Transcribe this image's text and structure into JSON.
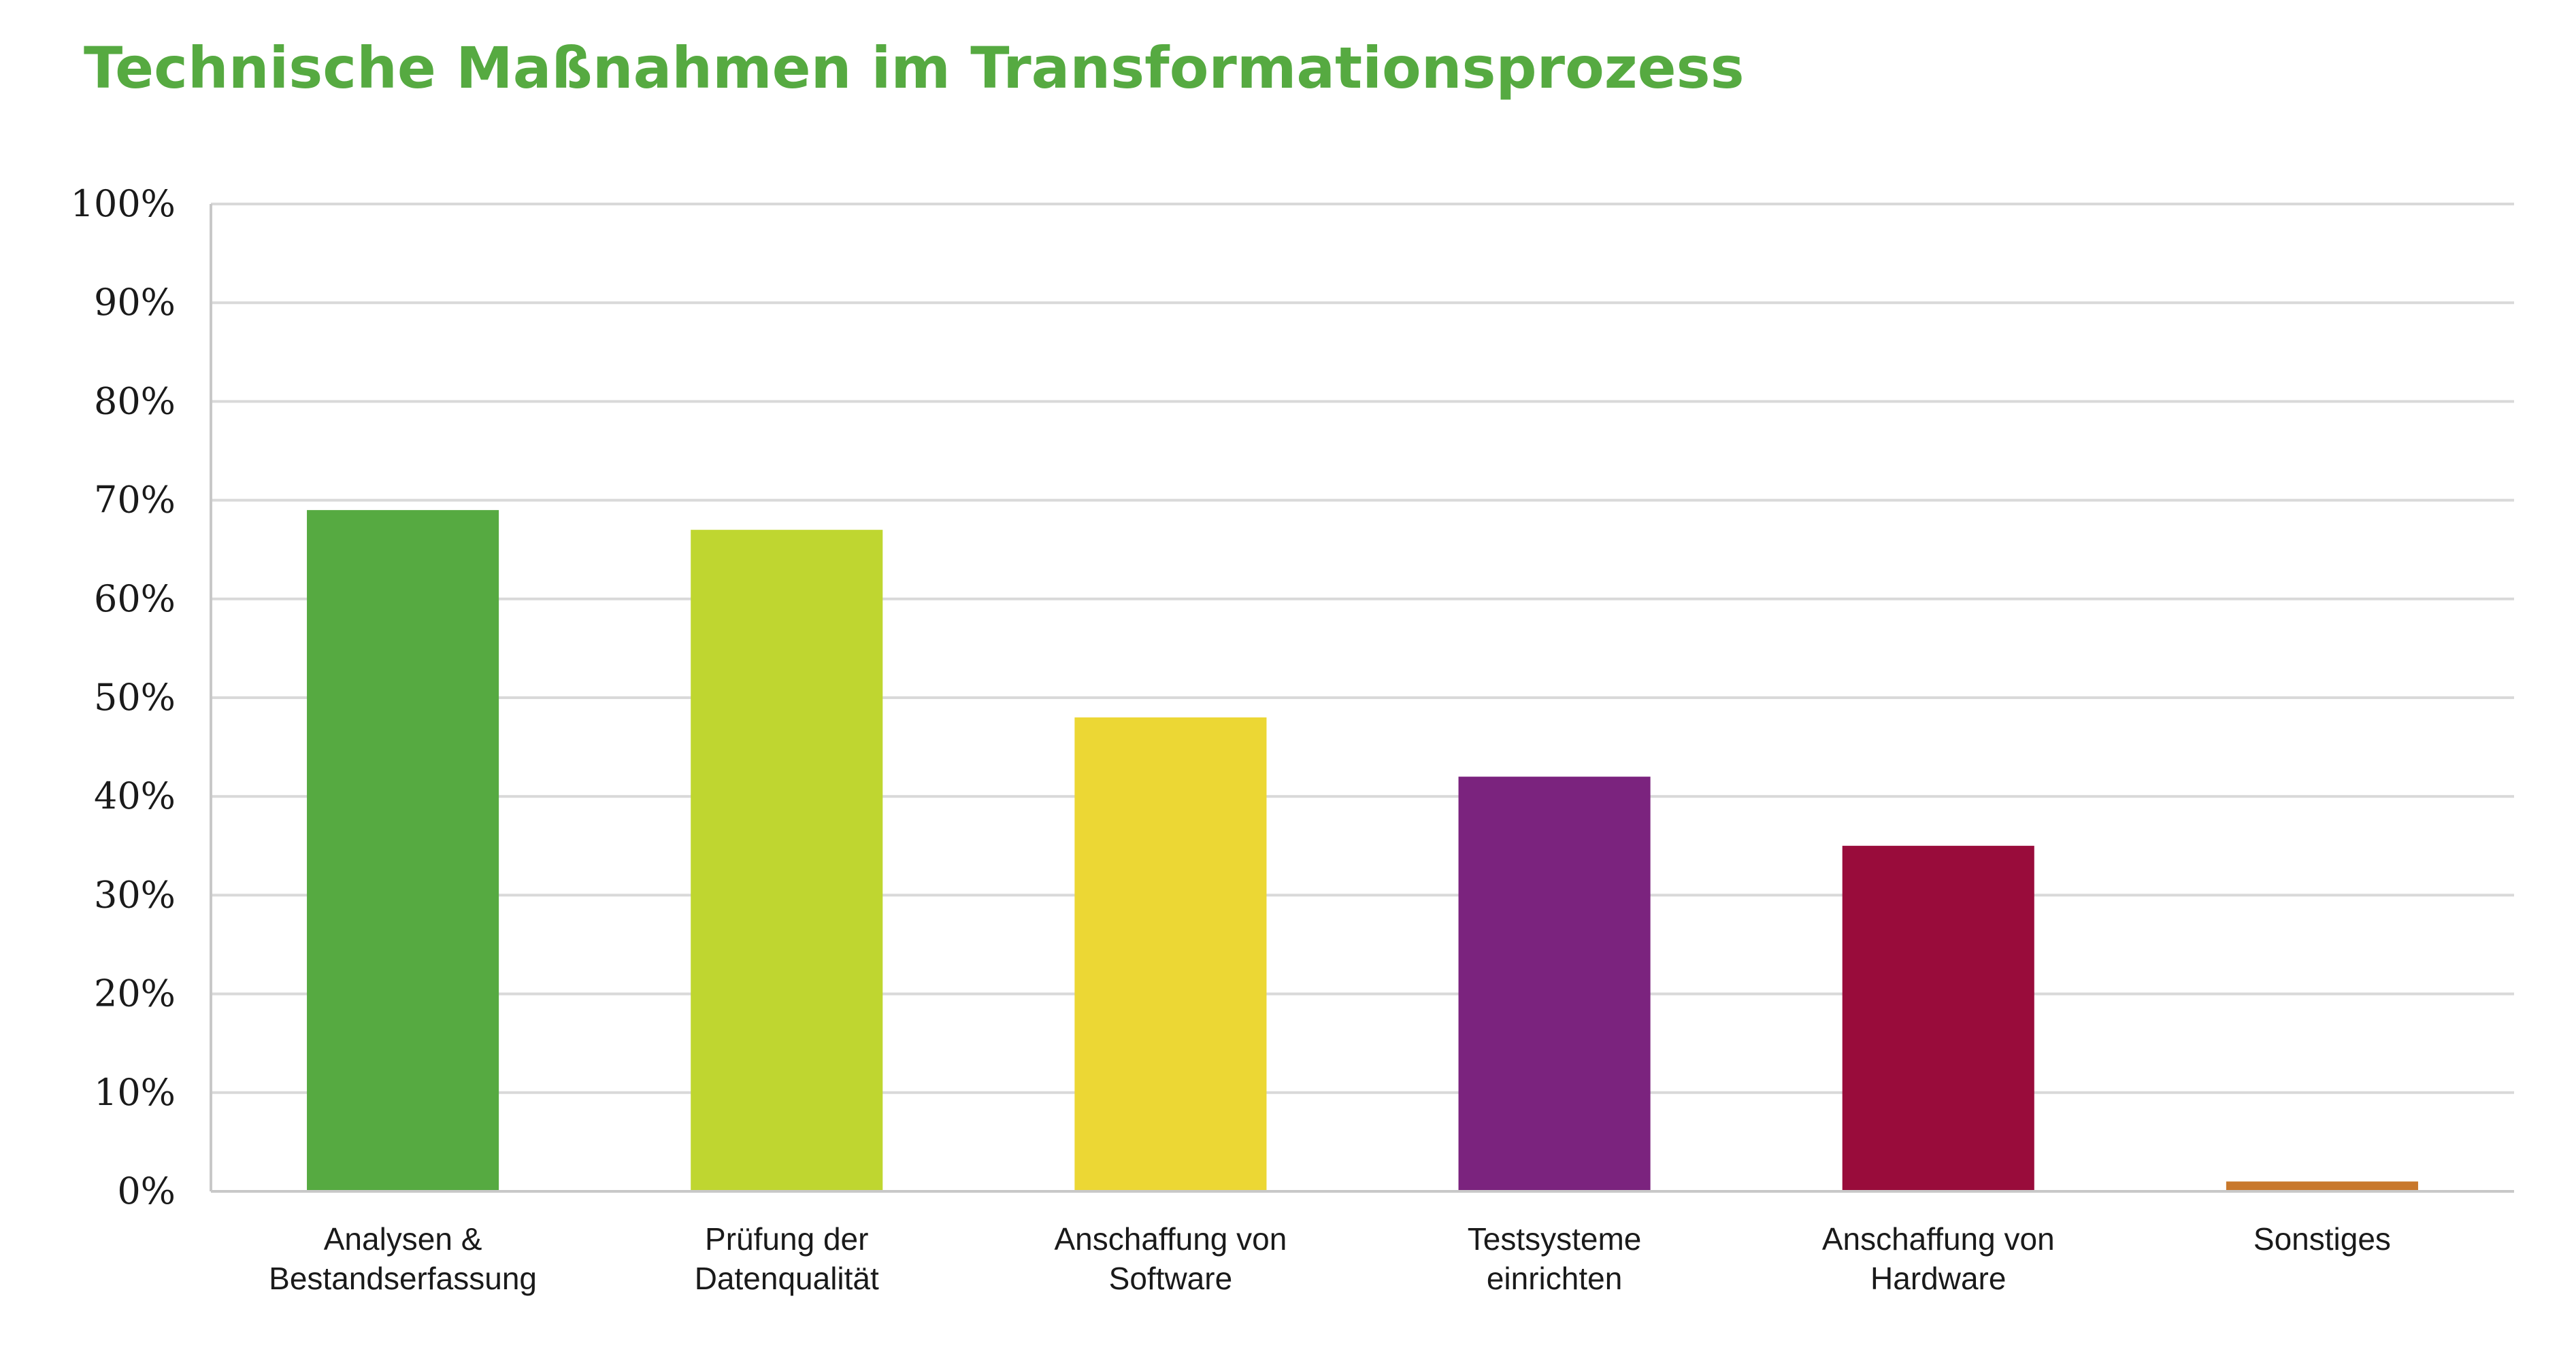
{
  "colors": {
    "title": "#56aa41",
    "grid": "#d9d9d9",
    "text": "#1a1a1a"
  },
  "chart_data": {
    "type": "bar",
    "title": "Technische Maßnahmen im Transformationsprozess",
    "xlabel": "",
    "ylabel": "",
    "ylim": [
      0,
      100
    ],
    "yticks": [
      0,
      10,
      20,
      30,
      40,
      50,
      60,
      70,
      80,
      90,
      100
    ],
    "ytick_labels": [
      "0%",
      "10%",
      "20%",
      "30%",
      "40%",
      "50%",
      "60%",
      "70%",
      "80%",
      "90%",
      "100%"
    ],
    "grid": true,
    "legend": "none",
    "categories": [
      [
        "Analysen &",
        "Bestandserfassung"
      ],
      [
        "Prüfung der",
        "Datenqualität"
      ],
      [
        "Anschaffung von",
        "Software"
      ],
      [
        "Testsysteme",
        "einrichten"
      ],
      [
        "Anschaffung von",
        "Hardware"
      ],
      [
        "Sonstiges"
      ]
    ],
    "values": [
      69,
      67,
      48,
      42,
      35,
      1
    ],
    "bar_colors": [
      "#56aa41",
      "#bfd630",
      "#ecd734",
      "#7b237e",
      "#990c3b",
      "#c8782c"
    ]
  }
}
